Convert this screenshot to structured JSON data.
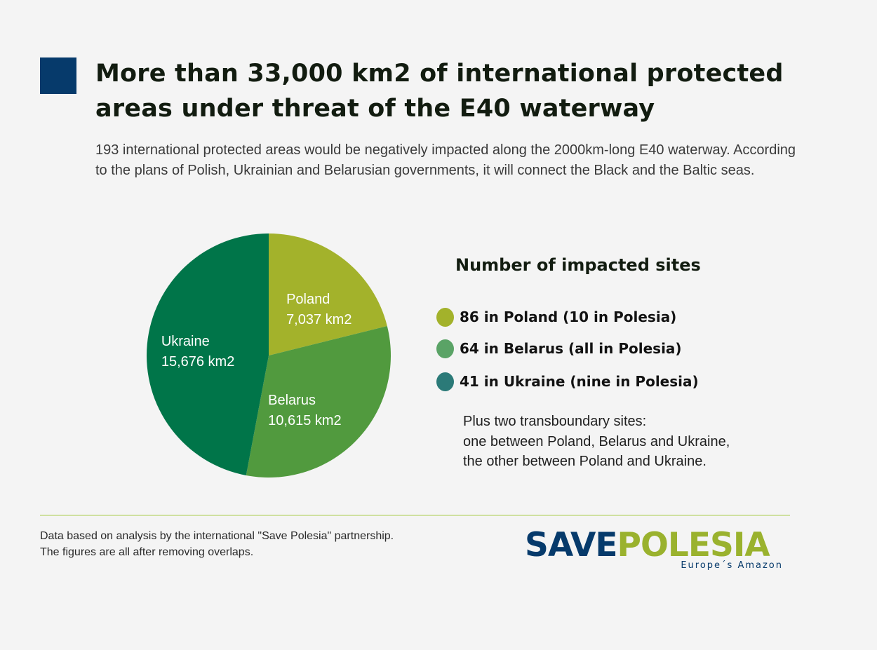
{
  "header": {
    "title_line1": "More than 33,000 km2 of international protected",
    "title_line2": "areas under threat of the E40 waterway",
    "accent_color": "#063a6b"
  },
  "intro": {
    "text": "193 international protected areas would be negatively impacted along the 2000km-long E40 waterway. According to the plans of Polish, Ukrainian and Belarusian governments, it will connect the Black and the Baltic seas."
  },
  "chart_data": {
    "type": "pie",
    "unit": "km2",
    "slices": [
      {
        "name": "Poland",
        "value": 7037,
        "value_label": "7,037 km2",
        "color": "#a3b22b"
      },
      {
        "name": "Belarus",
        "value": 10615,
        "value_label": "10,615 km2",
        "color": "#519a3e"
      },
      {
        "name": "Ukraine",
        "value": 15676,
        "value_label": "15,676 km2",
        "color": "#007549"
      }
    ]
  },
  "legend": {
    "title": "Number of impacted sites",
    "items": [
      {
        "label": "86 in Poland (10 in Polesia)",
        "color": "#a3b22b"
      },
      {
        "label": "64 in Belarus (all in Polesia)",
        "color": "#5aa366"
      },
      {
        "label": "41 in Ukraine (nine in Polesia)",
        "color": "#2b7a78"
      }
    ],
    "transboundary": {
      "line1": "Plus two transboundary sites:",
      "line2": "one between Poland, Belarus and Ukraine,",
      "line3": "the other between Poland and Ukraine."
    }
  },
  "footer": {
    "note_line1": "Data based on analysis by the international \"Save Polesia\" partnership.",
    "note_line2": "The figures are all after removing overlaps.",
    "logo_save": "SAVE",
    "logo_polesia": "POLESIA",
    "logo_tagline": "Europe´s Amazon",
    "logo_colors": {
      "save": "#063a6b",
      "polesia": "#9ab22e"
    }
  }
}
